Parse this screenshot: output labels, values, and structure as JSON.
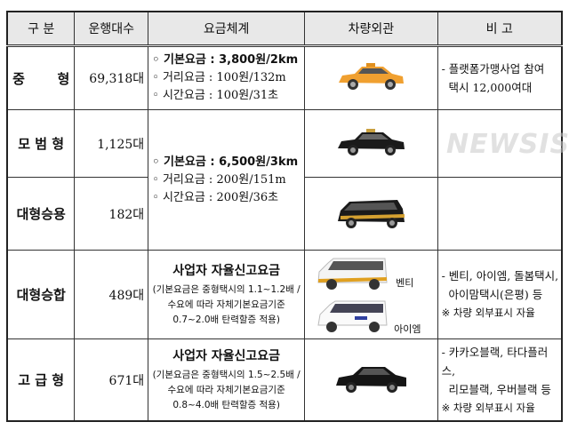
{
  "headers": [
    "구  분",
    "운행대수",
    "요금체계",
    "차량외관",
    "비      고"
  ],
  "rows": [
    {
      "category": "중       형",
      "count": "69,318대",
      "fees": [
        "◦ 기본요금 : 3,800원/2km",
        "◦ 거리요금 : 100원/132m",
        "◦ 시간요금 : 100원/31초"
      ],
      "notes": [
        "- 플랫폼가맹사업 참여",
        "  택시 12,000여대"
      ]
    },
    {
      "category": "모 범 형",
      "count": "1,125대",
      "notes": []
    },
    {
      "category": "대형승용",
      "count": "182대",
      "notes": []
    },
    {
      "category": "대형승합",
      "count": "489대",
      "fee_title": "사업자 자율신고요금",
      "fee_detail": [
        "(기본요금은 중형택시의 1.1~1.2배 /",
        "수요에 따라 자체기본요금기준",
        "0.7~2.0배 탄력할증 적용)"
      ],
      "vehicle_labels": [
        "벤티",
        "아이엠"
      ],
      "notes": [
        "- 벤티, 아이엠, 돌봄택시,",
        "  아이맘택시(은평) 등",
        "※ 차량 외부표시 자율"
      ]
    },
    {
      "category": "고 급 형",
      "count": "671대",
      "fee_title": "사업자 자율신고요금",
      "fee_detail": [
        "(기본요금은 중형택시의 1.5~2.5배 /",
        "수요에 따라 자체기본요금기준",
        "0.8~4.0배 탄력할증 적용)"
      ],
      "notes": [
        "- 카카오블랙, 타다플러스,",
        "  리모블랙, 우버블랙 등",
        "※ 차량 외부표시 자율"
      ]
    }
  ],
  "shared_fees": [
    "◦ 기본요금 : 6,500원/3km",
    "◦ 거리요금 : 200원/151m",
    "◦ 시간요금 : 200원/36초"
  ],
  "watermark": "NEWSIS",
  "colors": {
    "header_bg": "#e8e8e8",
    "orange_taxi": "#f0a030",
    "black_taxi": "#1a1a1a"
  }
}
